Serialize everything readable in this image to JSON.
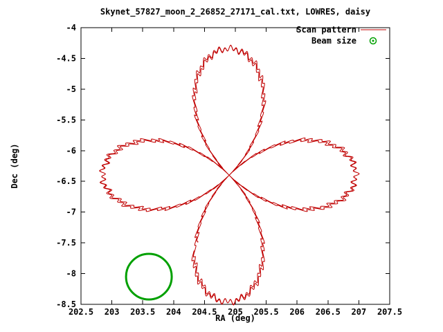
{
  "chart_data": {
    "type": "line",
    "title": "Skynet_57827_moon_2_26852_27171_cal.txt, LOWRES, daisy",
    "xlabel": "RA (deg)",
    "ylabel": "Dec (deg)",
    "xlim": [
      202.5,
      207.5
    ],
    "ylim": [
      -8.5,
      -4
    ],
    "xticks": [
      202.5,
      203,
      203.5,
      204,
      204.5,
      205,
      205.5,
      206,
      206.5,
      207,
      207.5
    ],
    "yticks": [
      -4,
      -4.5,
      -5,
      -5.5,
      -6,
      -6.5,
      -7,
      -7.5,
      -8,
      -8.5
    ],
    "grid": false,
    "legend_position": "top-right-inside",
    "colors": {
      "background": "#ffffff",
      "text": "#000000",
      "axis": "#000000"
    },
    "series": [
      {
        "name": "Scan pattern",
        "color": "#c00000",
        "style": "line",
        "pattern": "daisy-rose",
        "params": {
          "center_ra": 204.9,
          "center_dec": -6.4,
          "amp_ra": 2.05,
          "amp_dec": 2.06,
          "petal_k": 2,
          "petal_count": 4,
          "passes": 2,
          "theta0_deg": 65,
          "rot_start_deg": -1.3,
          "rot_end_deg": 1.3,
          "wobble": [
            {
              "amp": 0.018,
              "freq": 140,
              "phase": 0
            },
            {
              "amp": 0.01,
              "freq": 57,
              "phase": 1
            }
          ],
          "samples": 2400,
          "petal_tips": [
            {
              "ra": 206.95,
              "dec": -6.4
            },
            {
              "ra": 204.9,
              "dec": -4.34
            },
            {
              "ra": 202.85,
              "dec": -6.4
            },
            {
              "ra": 204.9,
              "dec": -8.46
            }
          ]
        }
      },
      {
        "name": "Beam size",
        "color": "#00a000",
        "style": "circle",
        "circle": {
          "ra": 203.6,
          "dec": -8.05,
          "radius_deg": 0.37,
          "stroke_px": 3
        }
      }
    ]
  }
}
